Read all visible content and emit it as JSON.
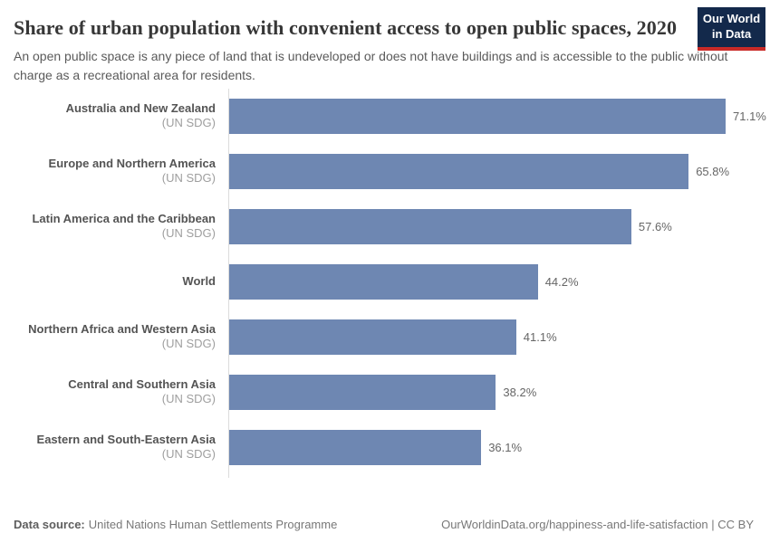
{
  "header": {
    "title": "Share of urban population with convenient access to open public spaces, 2020",
    "subtitle": "An open public space is any piece of land that is undeveloped or does not have buildings and is accessible to the public without charge as a recreational area for residents.",
    "logo": {
      "line1": "Our World",
      "line2": "in Data"
    }
  },
  "chart_data": {
    "type": "bar",
    "orientation": "horizontal",
    "title": "Share of urban population with convenient access to open public spaces, 2020",
    "unit": "%",
    "xlim": [
      0,
      71.1
    ],
    "grid": false,
    "legend": false,
    "categories": [
      {
        "name": "Australia and New Zealand",
        "suffix": "(UN SDG)"
      },
      {
        "name": "Europe and Northern America",
        "suffix": "(UN SDG)"
      },
      {
        "name": "Latin America and the Caribbean",
        "suffix": "(UN SDG)"
      },
      {
        "name": "World",
        "suffix": ""
      },
      {
        "name": "Northern Africa and Western Asia",
        "suffix": "(UN SDG)"
      },
      {
        "name": "Central and Southern Asia",
        "suffix": "(UN SDG)"
      },
      {
        "name": "Eastern and South-Eastern Asia",
        "suffix": "(UN SDG)"
      }
    ],
    "values": [
      71.1,
      65.8,
      57.6,
      44.2,
      41.1,
      38.2,
      36.1
    ],
    "value_labels": [
      "71.1%",
      "65.8%",
      "57.6%",
      "44.2%",
      "41.1%",
      "38.2%",
      "36.1%"
    ]
  },
  "footer": {
    "source_label": "Data source:",
    "source_value": "United Nations Human Settlements Programme",
    "link": "OurWorldinData.org/happiness-and-life-satisfaction | CC BY"
  },
  "colors": {
    "bar": "#6e87b2",
    "axis_line": "#dcdcdc",
    "title_text": "#373737",
    "logo_background": "#13294b",
    "logo_accent": "#c92a27"
  }
}
